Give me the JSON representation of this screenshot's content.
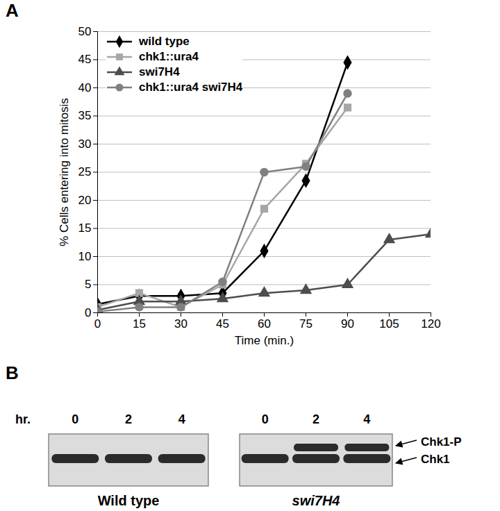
{
  "chart_data": {
    "type": "line",
    "x_label": "Time (min.)",
    "y_label": "% Cells entering into mitosis",
    "x": [
      0,
      15,
      30,
      45,
      60,
      75,
      90,
      105,
      120
    ],
    "series": [
      {
        "name": "wild type",
        "color": "#000000",
        "marker": "diamond",
        "values": [
          1.5,
          3,
          3,
          3.5,
          11,
          23.5,
          44.5,
          null,
          null
        ]
      },
      {
        "name": "chk1::ura4",
        "color": "#a6a6a6",
        "marker": "square",
        "values": [
          1,
          3.5,
          1,
          5,
          18.5,
          26.5,
          36.5,
          null,
          null
        ]
      },
      {
        "name": "swi7H4",
        "color": "#4d4d4d",
        "marker": "triangle",
        "values": [
          0.5,
          2,
          2,
          2.5,
          3.5,
          4,
          5,
          13,
          14
        ]
      },
      {
        "name": "chk1::ura4 swi7H4",
        "color": "#808080",
        "marker": "circle",
        "values": [
          0.2,
          1,
          1,
          5.5,
          25,
          26,
          39,
          null,
          null
        ]
      }
    ],
    "xlim": [
      0,
      120
    ],
    "xticks": [
      0,
      15,
      30,
      45,
      60,
      75,
      90,
      105,
      120
    ],
    "ylim": [
      0,
      50
    ],
    "yticks": [
      0,
      5,
      10,
      15,
      20,
      25,
      30,
      35,
      40,
      45,
      50
    ],
    "grid": true,
    "legend": "top-left"
  },
  "panel_labels": [
    "A",
    "B"
  ],
  "blot": {
    "time_label": "hr.",
    "times": [
      "0",
      "2",
      "4"
    ],
    "band_labels": [
      "Chk1-P",
      "Chk1"
    ],
    "panels": [
      {
        "name": "Wild type",
        "phospho_band": [
          false,
          false,
          false
        ]
      },
      {
        "name": "swi7H4",
        "phospho_band": [
          false,
          true,
          true
        ]
      }
    ]
  }
}
